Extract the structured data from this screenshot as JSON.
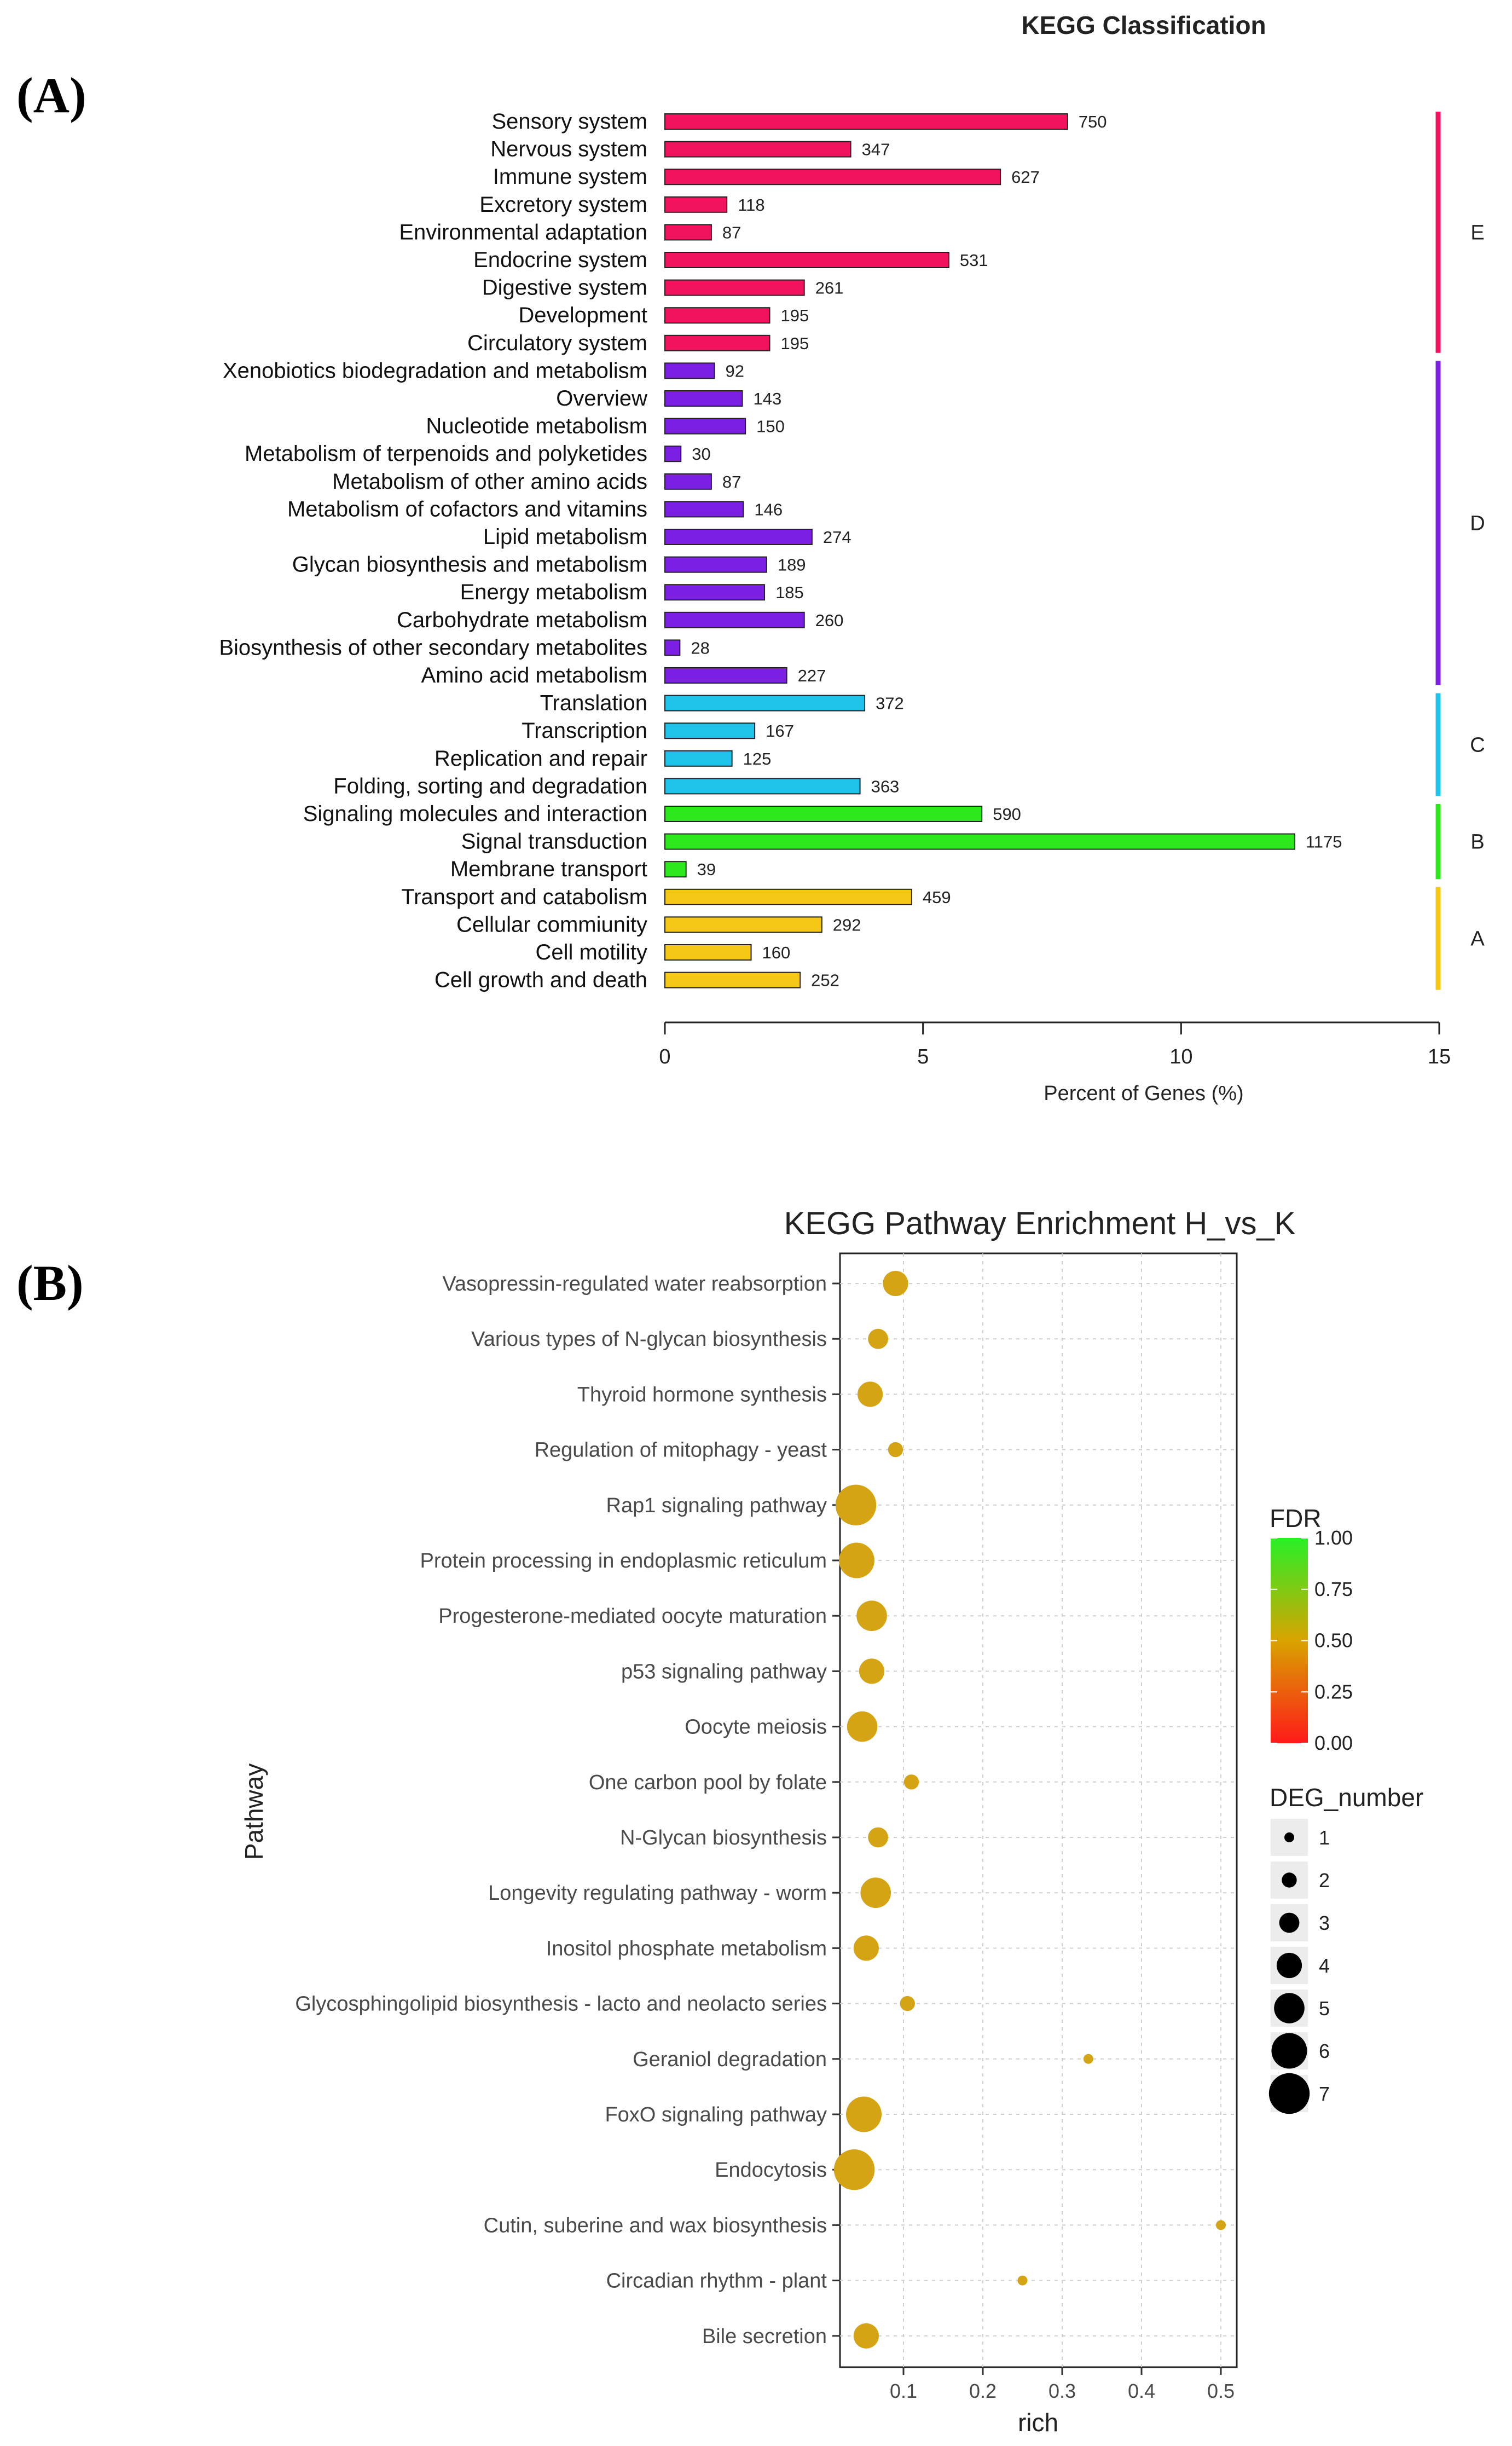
{
  "panels": {
    "a_label": "(A)",
    "b_label": "(B)"
  },
  "chart_data": [
    {
      "type": "bar",
      "orientation": "horizontal",
      "title": "KEGG Classification",
      "xlabel": "Percent of Genes (%)",
      "xlim": [
        0,
        15
      ],
      "xticks": [
        "0",
        "5",
        "10",
        "15"
      ],
      "categories": [
        {
          "name": "Sensory system",
          "count": 750,
          "percent": 7.8,
          "group": "E"
        },
        {
          "name": "Nervous system",
          "count": 347,
          "percent": 3.6,
          "group": "E"
        },
        {
          "name": "Immune system",
          "count": 627,
          "percent": 6.5,
          "group": "E"
        },
        {
          "name": "Excretory system",
          "count": 118,
          "percent": 1.2,
          "group": "E"
        },
        {
          "name": "Environmental adaptation",
          "count": 87,
          "percent": 0.9,
          "group": "E"
        },
        {
          "name": "Endocrine system",
          "count": 531,
          "percent": 5.5,
          "group": "E"
        },
        {
          "name": "Digestive system",
          "count": 261,
          "percent": 2.7,
          "group": "E"
        },
        {
          "name": "Development",
          "count": 195,
          "percent": 2.03,
          "group": "E"
        },
        {
          "name": "Circulatory system",
          "count": 195,
          "percent": 2.03,
          "group": "E"
        },
        {
          "name": "Xenobiotics biodegradation and metabolism",
          "count": 92,
          "percent": 0.96,
          "group": "D"
        },
        {
          "name": "Overview",
          "count": 143,
          "percent": 1.5,
          "group": "D"
        },
        {
          "name": "Nucleotide metabolism",
          "count": 150,
          "percent": 1.56,
          "group": "D"
        },
        {
          "name": "Metabolism of terpenoids and polyketides",
          "count": 30,
          "percent": 0.31,
          "group": "D"
        },
        {
          "name": "Metabolism of other amino acids",
          "count": 87,
          "percent": 0.9,
          "group": "D"
        },
        {
          "name": "Metabolism of cofactors and vitamins",
          "count": 146,
          "percent": 1.52,
          "group": "D"
        },
        {
          "name": "Lipid metabolism",
          "count": 274,
          "percent": 2.85,
          "group": "D"
        },
        {
          "name": "Glycan biosynthesis and metabolism",
          "count": 189,
          "percent": 1.97,
          "group": "D"
        },
        {
          "name": "Energy metabolism",
          "count": 185,
          "percent": 1.93,
          "group": "D"
        },
        {
          "name": "Carbohydrate metabolism",
          "count": 260,
          "percent": 2.7,
          "group": "D"
        },
        {
          "name": "Biosynthesis of other secondary metabolites",
          "count": 28,
          "percent": 0.29,
          "group": "D"
        },
        {
          "name": "Amino acid metabolism",
          "count": 227,
          "percent": 2.36,
          "group": "D"
        },
        {
          "name": "Translation",
          "count": 372,
          "percent": 3.87,
          "group": "C"
        },
        {
          "name": "Transcription",
          "count": 167,
          "percent": 1.74,
          "group": "C"
        },
        {
          "name": "Replication and repair",
          "count": 125,
          "percent": 1.3,
          "group": "C"
        },
        {
          "name": "Folding, sorting and degradation",
          "count": 363,
          "percent": 3.78,
          "group": "C"
        },
        {
          "name": "Signaling molecules and interaction",
          "count": 590,
          "percent": 6.14,
          "group": "B"
        },
        {
          "name": "Signal transduction",
          "count": 1175,
          "percent": 12.2,
          "group": "B"
        },
        {
          "name": "Membrane transport",
          "count": 39,
          "percent": 0.41,
          "group": "B"
        },
        {
          "name": "Transport and catabolism",
          "count": 459,
          "percent": 4.78,
          "group": "A"
        },
        {
          "name": "Cellular commiunity",
          "count": 292,
          "percent": 3.04,
          "group": "A"
        },
        {
          "name": "Cell motility",
          "count": 160,
          "percent": 1.67,
          "group": "A"
        },
        {
          "name": "Cell growth and death",
          "count": 252,
          "percent": 2.62,
          "group": "A"
        }
      ],
      "groups": [
        {
          "name": "E",
          "color": "#f2135e"
        },
        {
          "name": "D",
          "color": "#7b1fe3"
        },
        {
          "name": "C",
          "color": "#1fc3ea"
        },
        {
          "name": "B",
          "color": "#2ee81e"
        },
        {
          "name": "A",
          "color": "#f5c815"
        }
      ]
    },
    {
      "type": "scatter",
      "title": "KEGG Pathway Enrichment  H_vs_K",
      "xlabel": "rich",
      "ylabel": "Pathway",
      "xlim": [
        0.02,
        0.52
      ],
      "xticks": [
        "0.1",
        "0.2",
        "0.3",
        "0.4",
        "0.5"
      ],
      "points": [
        {
          "pathway": "Vasopressin-regulated water reabsorption",
          "rich": 0.09,
          "deg_number": 4,
          "fdr": 0.55
        },
        {
          "pathway": "Various types of N-glycan biosynthesis",
          "rich": 0.068,
          "deg_number": 3,
          "fdr": 0.55
        },
        {
          "pathway": "Thyroid hormone synthesis",
          "rich": 0.058,
          "deg_number": 4,
          "fdr": 0.55
        },
        {
          "pathway": "Regulation of mitophagy - yeast",
          "rich": 0.09,
          "deg_number": 2,
          "fdr": 0.55
        },
        {
          "pathway": "Rap1 signaling pathway",
          "rich": 0.04,
          "deg_number": 7,
          "fdr": 0.55
        },
        {
          "pathway": "Protein processing in endoplasmic reticulum",
          "rich": 0.041,
          "deg_number": 6,
          "fdr": 0.55
        },
        {
          "pathway": "Progesterone-mediated oocyte maturation",
          "rich": 0.06,
          "deg_number": 5,
          "fdr": 0.55
        },
        {
          "pathway": "p53 signaling pathway",
          "rich": 0.06,
          "deg_number": 4,
          "fdr": 0.55
        },
        {
          "pathway": "Oocyte meiosis",
          "rich": 0.048,
          "deg_number": 5,
          "fdr": 0.55
        },
        {
          "pathway": "One carbon pool by folate",
          "rich": 0.11,
          "deg_number": 2,
          "fdr": 0.55
        },
        {
          "pathway": "N-Glycan biosynthesis",
          "rich": 0.068,
          "deg_number": 3,
          "fdr": 0.55
        },
        {
          "pathway": "Longevity regulating pathway - worm",
          "rich": 0.065,
          "deg_number": 5,
          "fdr": 0.55
        },
        {
          "pathway": "Inositol phosphate metabolism",
          "rich": 0.053,
          "deg_number": 4,
          "fdr": 0.55
        },
        {
          "pathway": "Glycosphingolipid biosynthesis - lacto and neolacto series",
          "rich": 0.105,
          "deg_number": 2,
          "fdr": 0.55
        },
        {
          "pathway": "Geraniol degradation",
          "rich": 0.333,
          "deg_number": 1,
          "fdr": 0.55
        },
        {
          "pathway": "FoxO signaling pathway",
          "rich": 0.05,
          "deg_number": 6,
          "fdr": 0.55
        },
        {
          "pathway": "Endocytosis",
          "rich": 0.038,
          "deg_number": 7,
          "fdr": 0.55
        },
        {
          "pathway": "Cutin, suberine and wax biosynthesis",
          "rich": 0.5,
          "deg_number": 1,
          "fdr": 0.55
        },
        {
          "pathway": "Circadian rhythm - plant",
          "rich": 0.25,
          "deg_number": 1,
          "fdr": 0.55
        },
        {
          "pathway": "Bile secretion",
          "rich": 0.053,
          "deg_number": 4,
          "fdr": 0.55
        }
      ],
      "legend": {
        "fdr_title": "FDR",
        "fdr_ticks": [
          "1.00",
          "0.75",
          "0.50",
          "0.25",
          "0.00"
        ],
        "deg_title": "DEG_number",
        "deg_values": [
          "1",
          "2",
          "3",
          "4",
          "5",
          "6",
          "7"
        ]
      },
      "point_color": "#d4a415",
      "fdr_colors": {
        "low": "#ff1a1a",
        "mid": "#d9a300",
        "high": "#27f027"
      }
    }
  ]
}
